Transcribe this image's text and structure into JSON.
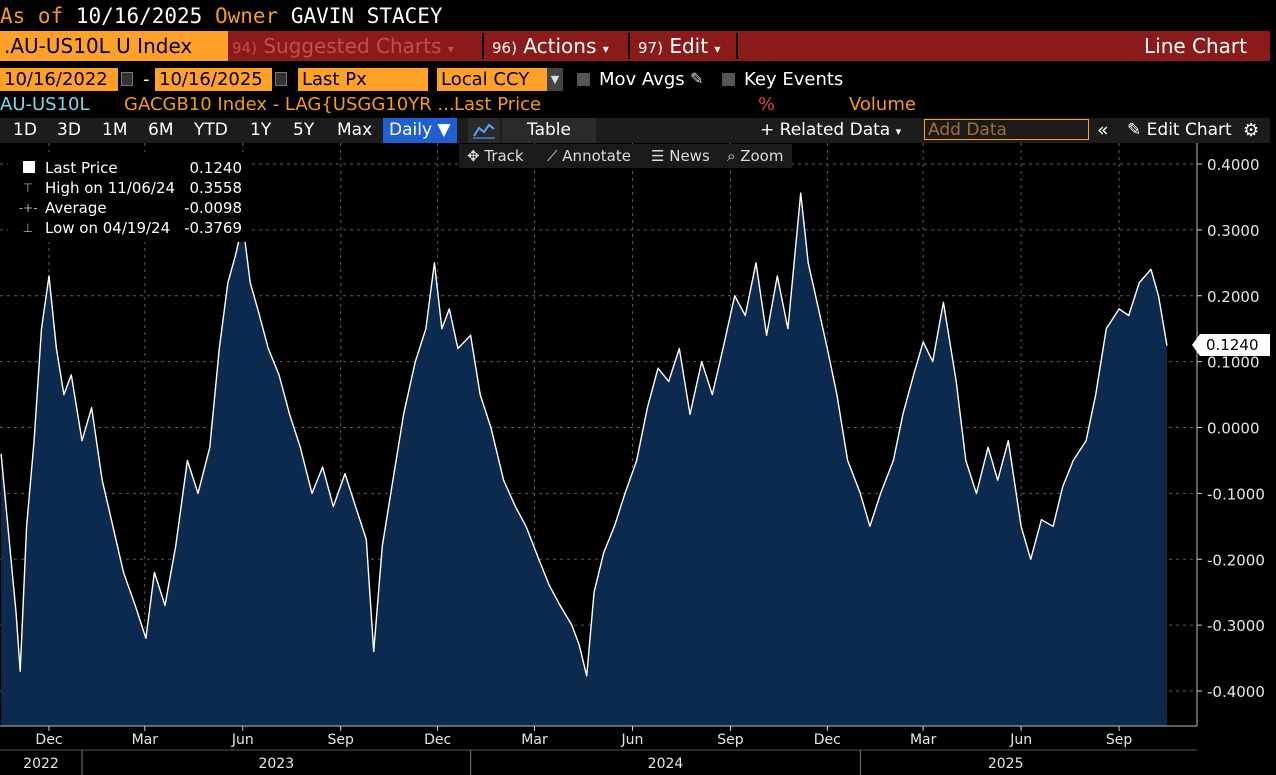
{
  "header": {
    "as_of_label": "As of",
    "as_of_date": "10/16/2025",
    "owner_label": "Owner",
    "owner_name": "GAVIN STACEY"
  },
  "menu": {
    "ticker": ".AU-US10L U Index",
    "suggested_num": "94)",
    "suggested_label": "Suggested Charts",
    "actions_num": "96)",
    "actions_label": "Actions",
    "edit_num": "97)",
    "edit_label": "Edit",
    "chart_type": "Line Chart"
  },
  "settings": {
    "start_date": "10/16/2022",
    "end_date": "10/16/2025",
    "field": "Last Px",
    "currency": "Local CCY",
    "mov_avgs": "Mov Avgs",
    "key_events": "Key Events",
    "dash": "-"
  },
  "legend_line": {
    "security": "AU-US10L",
    "formula": "GACGB10 Index - LAG{USGG10YR ...",
    "field": "Last Price",
    "pct": "%",
    "volume": "Volume"
  },
  "toolbar": {
    "ranges": [
      "1D",
      "3D",
      "1M",
      "6M",
      "YTD",
      "1Y",
      "5Y",
      "Max"
    ],
    "frequency": "Daily ▼",
    "table": "Table",
    "related": "+ Related Data",
    "add_placeholder": "Add Data",
    "edit_chart": "Edit Chart"
  },
  "subtoolbar": {
    "track": "Track",
    "annotate": "Annotate",
    "news": "News",
    "zoom": "Zoom"
  },
  "stats": {
    "last_label": "Last Price",
    "last_value": "0.1240",
    "high_label": "High on 11/06/24",
    "high_value": "0.3558",
    "avg_label": "Average",
    "avg_value": "-0.0098",
    "low_label": "Low on 04/19/24",
    "low_value": "-0.3769"
  },
  "colors": {
    "accent_orange": "#ffa028",
    "menu_red": "#8b1a1a",
    "area_fill": "#0b2a4e",
    "line": "#ffffff",
    "legend_cyan": "#7fd8e8",
    "legend_orange": "#f39c12",
    "legend_red": "#e04040"
  },
  "chart_data": {
    "type": "area",
    "title": "",
    "xlabel": "",
    "ylabel": "",
    "ylim": [
      -0.45,
      0.42
    ],
    "ytick_values": [
      0.4,
      0.3,
      0.2,
      0.1,
      0.0,
      -0.1,
      -0.2,
      -0.3,
      -0.4
    ],
    "ytick_labels": [
      "0.4000",
      "0.3000",
      "0.2000",
      "0.1000",
      "0.0000",
      "-0.1000",
      "-0.2000",
      "-0.3000",
      "-0.4000"
    ],
    "x_start": "2022-10-16",
    "x_end": "2025-10-16",
    "month_ticks": [
      {
        "date": "2022-12-01",
        "label": "Dec"
      },
      {
        "date": "2023-03-01",
        "label": "Mar"
      },
      {
        "date": "2023-06-01",
        "label": "Jun"
      },
      {
        "date": "2023-09-01",
        "label": "Sep"
      },
      {
        "date": "2023-12-01",
        "label": "Dec"
      },
      {
        "date": "2024-03-01",
        "label": "Mar"
      },
      {
        "date": "2024-06-01",
        "label": "Jun"
      },
      {
        "date": "2024-09-01",
        "label": "Sep"
      },
      {
        "date": "2024-12-01",
        "label": "Dec"
      },
      {
        "date": "2025-03-01",
        "label": "Mar"
      },
      {
        "date": "2025-06-01",
        "label": "Jun"
      },
      {
        "date": "2025-09-01",
        "label": "Sep"
      }
    ],
    "year_ticks": [
      {
        "date": "2023-01-01",
        "label": "2022"
      },
      {
        "date": "2024-01-01",
        "label": "2023"
      },
      {
        "date": "2025-01-01",
        "label": "2024"
      },
      {
        "date": "2025-10-01",
        "label": "2025"
      }
    ],
    "series": [
      {
        "name": "Last Price",
        "points": [
          [
            "2022-10-17",
            -0.04
          ],
          [
            "2022-10-24",
            -0.16
          ],
          [
            "2022-10-31",
            -0.28
          ],
          [
            "2022-11-04",
            -0.37
          ],
          [
            "2022-11-10",
            -0.15
          ],
          [
            "2022-11-17",
            -0.02
          ],
          [
            "2022-11-24",
            0.15
          ],
          [
            "2022-12-01",
            0.23
          ],
          [
            "2022-12-08",
            0.12
          ],
          [
            "2022-12-15",
            0.05
          ],
          [
            "2022-12-22",
            0.08
          ],
          [
            "2023-01-01",
            -0.02
          ],
          [
            "2023-01-10",
            0.03
          ],
          [
            "2023-01-20",
            -0.08
          ],
          [
            "2023-01-30",
            -0.15
          ],
          [
            "2023-02-09",
            -0.22
          ],
          [
            "2023-02-20",
            -0.27
          ],
          [
            "2023-03-02",
            -0.32
          ],
          [
            "2023-03-10",
            -0.22
          ],
          [
            "2023-03-20",
            -0.27
          ],
          [
            "2023-03-30",
            -0.18
          ],
          [
            "2023-04-10",
            -0.05
          ],
          [
            "2023-04-20",
            -0.1
          ],
          [
            "2023-05-01",
            -0.03
          ],
          [
            "2023-05-10",
            0.12
          ],
          [
            "2023-05-18",
            0.22
          ],
          [
            "2023-05-25",
            0.26
          ],
          [
            "2023-06-01",
            0.31
          ],
          [
            "2023-06-08",
            0.22
          ],
          [
            "2023-06-15",
            0.18
          ],
          [
            "2023-06-25",
            0.12
          ],
          [
            "2023-07-05",
            0.08
          ],
          [
            "2023-07-15",
            0.02
          ],
          [
            "2023-07-25",
            -0.03
          ],
          [
            "2023-08-05",
            -0.1
          ],
          [
            "2023-08-15",
            -0.06
          ],
          [
            "2023-08-25",
            -0.12
          ],
          [
            "2023-09-05",
            -0.07
          ],
          [
            "2023-09-15",
            -0.12
          ],
          [
            "2023-09-25",
            -0.17
          ],
          [
            "2023-10-02",
            -0.34
          ],
          [
            "2023-10-10",
            -0.18
          ],
          [
            "2023-10-20",
            -0.08
          ],
          [
            "2023-10-30",
            0.02
          ],
          [
            "2023-11-10",
            0.1
          ],
          [
            "2023-11-20",
            0.15
          ],
          [
            "2023-11-28",
            0.25
          ],
          [
            "2023-12-05",
            0.15
          ],
          [
            "2023-12-12",
            0.18
          ],
          [
            "2023-12-20",
            0.12
          ],
          [
            "2024-01-01",
            0.14
          ],
          [
            "2024-01-10",
            0.05
          ],
          [
            "2024-01-20",
            0.0
          ],
          [
            "2024-02-01",
            -0.08
          ],
          [
            "2024-02-12",
            -0.12
          ],
          [
            "2024-02-22",
            -0.15
          ],
          [
            "2024-03-05",
            -0.2
          ],
          [
            "2024-03-15",
            -0.24
          ],
          [
            "2024-03-25",
            -0.27
          ],
          [
            "2024-04-05",
            -0.3
          ],
          [
            "2024-04-12",
            -0.33
          ],
          [
            "2024-04-19",
            -0.3769
          ],
          [
            "2024-04-26",
            -0.25
          ],
          [
            "2024-05-05",
            -0.19
          ],
          [
            "2024-05-15",
            -0.15
          ],
          [
            "2024-05-25",
            -0.1
          ],
          [
            "2024-06-05",
            -0.05
          ],
          [
            "2024-06-15",
            0.03
          ],
          [
            "2024-06-25",
            0.09
          ],
          [
            "2024-07-05",
            0.07
          ],
          [
            "2024-07-15",
            0.12
          ],
          [
            "2024-07-25",
            0.02
          ],
          [
            "2024-08-05",
            0.1
          ],
          [
            "2024-08-15",
            0.05
          ],
          [
            "2024-08-25",
            0.12
          ],
          [
            "2024-09-05",
            0.2
          ],
          [
            "2024-09-15",
            0.17
          ],
          [
            "2024-09-25",
            0.25
          ],
          [
            "2024-10-05",
            0.14
          ],
          [
            "2024-10-15",
            0.23
          ],
          [
            "2024-10-25",
            0.15
          ],
          [
            "2024-11-06",
            0.3558
          ],
          [
            "2024-11-13",
            0.25
          ],
          [
            "2024-11-20",
            0.2
          ],
          [
            "2024-12-01",
            0.12
          ],
          [
            "2024-12-10",
            0.05
          ],
          [
            "2024-12-20",
            -0.05
          ],
          [
            "2025-01-01",
            -0.1
          ],
          [
            "2025-01-10",
            -0.15
          ],
          [
            "2025-01-20",
            -0.1
          ],
          [
            "2025-02-01",
            -0.05
          ],
          [
            "2025-02-10",
            0.02
          ],
          [
            "2025-02-20",
            0.08
          ],
          [
            "2025-03-01",
            0.13
          ],
          [
            "2025-03-10",
            0.1
          ],
          [
            "2025-03-20",
            0.19
          ],
          [
            "2025-04-01",
            0.07
          ],
          [
            "2025-04-10",
            -0.05
          ],
          [
            "2025-04-20",
            -0.1
          ],
          [
            "2025-05-01",
            -0.03
          ],
          [
            "2025-05-10",
            -0.08
          ],
          [
            "2025-05-20",
            -0.02
          ],
          [
            "2025-06-01",
            -0.15
          ],
          [
            "2025-06-10",
            -0.2
          ],
          [
            "2025-06-20",
            -0.14
          ],
          [
            "2025-07-01",
            -0.15
          ],
          [
            "2025-07-10",
            -0.09
          ],
          [
            "2025-07-20",
            -0.05
          ],
          [
            "2025-08-01",
            -0.02
          ],
          [
            "2025-08-10",
            0.05
          ],
          [
            "2025-08-20",
            0.15
          ],
          [
            "2025-09-01",
            0.18
          ],
          [
            "2025-09-10",
            0.17
          ],
          [
            "2025-09-20",
            0.22
          ],
          [
            "2025-10-01",
            0.24
          ],
          [
            "2025-10-08",
            0.2
          ],
          [
            "2025-10-16",
            0.124
          ]
        ]
      }
    ],
    "last_value_tag": "0.1240",
    "grid": true,
    "legend_position": "top-left"
  }
}
